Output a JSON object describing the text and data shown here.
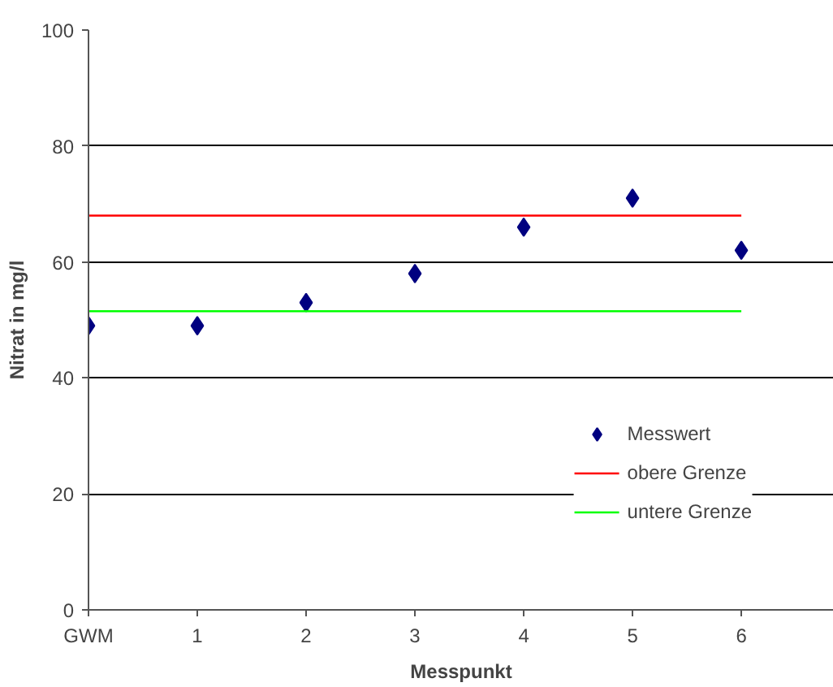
{
  "chart_data": {
    "type": "scatter",
    "xlabel": "Messpunkt",
    "ylabel": "Nitrat in mg/l",
    "categories": [
      "GWM",
      "1",
      "2",
      "3",
      "4",
      "5",
      "6"
    ],
    "series": [
      {
        "name": "Messwert",
        "color": "#000080",
        "marker": "diamond",
        "values": [
          49,
          49,
          53,
          58,
          66,
          71,
          62
        ]
      },
      {
        "name": "obere Grenze",
        "color": "#ff0000",
        "type": "line",
        "values": [
          68,
          68,
          68,
          68,
          68,
          68,
          68
        ]
      },
      {
        "name": "untere Grenze",
        "color": "#00ff00",
        "type": "line",
        "values": [
          51.5,
          51.5,
          51.5,
          51.5,
          51.5,
          51.5,
          51.5
        ]
      }
    ],
    "ylim": [
      0,
      100
    ],
    "yticks": [
      0,
      20,
      40,
      60,
      80,
      100
    ],
    "grid": "y",
    "legend": "bottom right"
  }
}
